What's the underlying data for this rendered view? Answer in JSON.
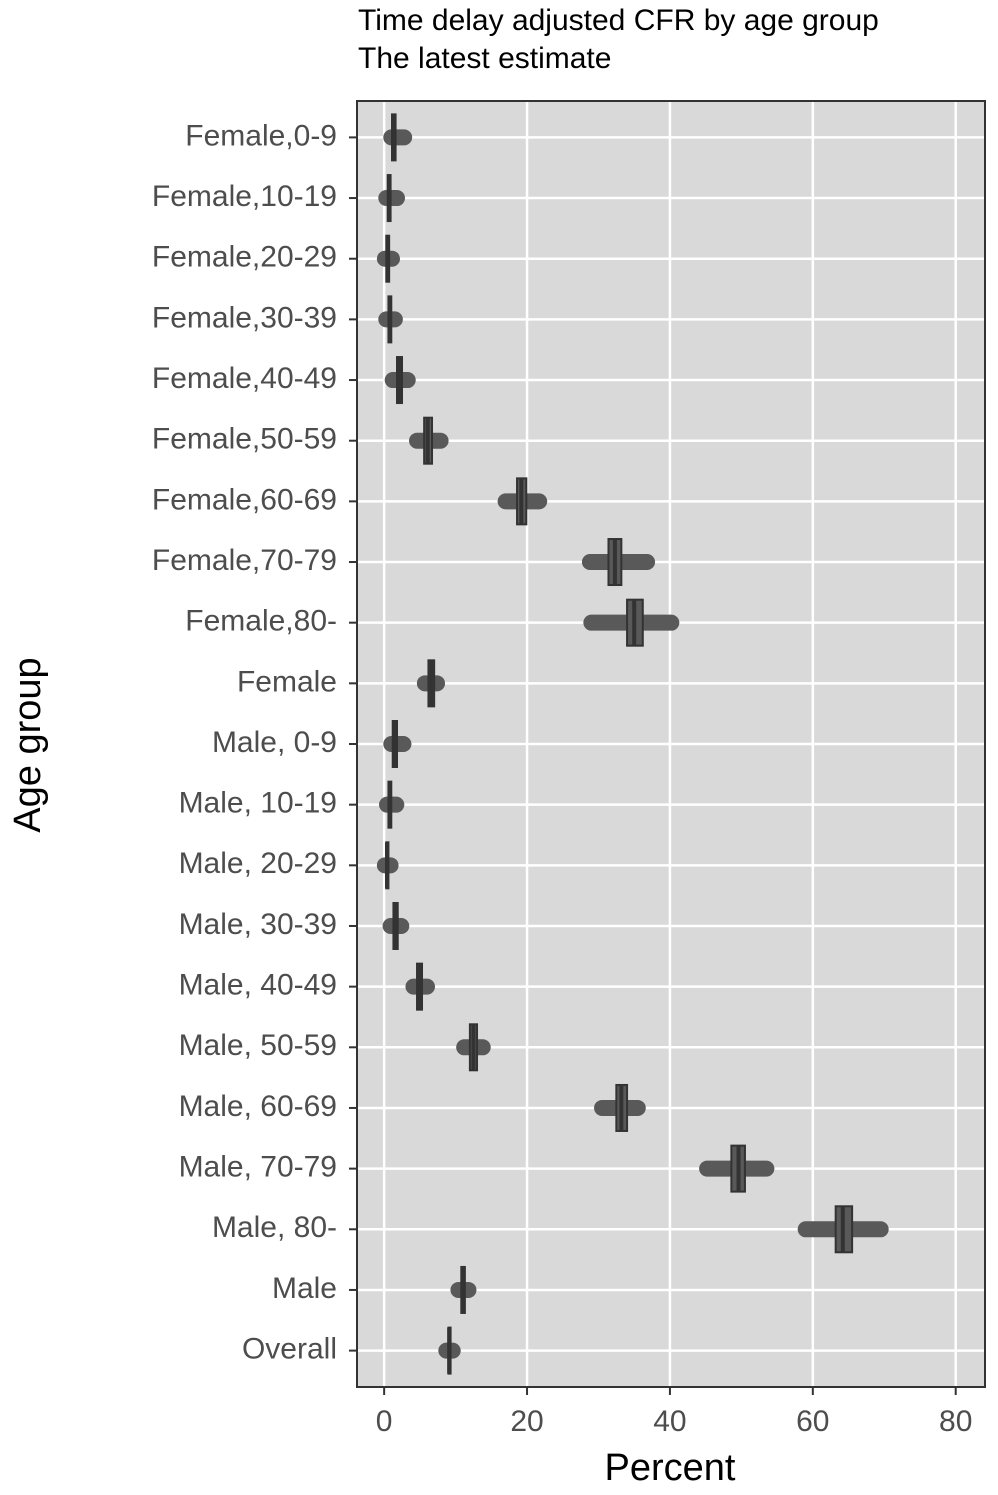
{
  "chart_data": {
    "type": "boxplot",
    "orientation": "horizontal",
    "title": "Time delay adjusted CFR by age group",
    "subtitle": "The latest estimate",
    "x_label": "Percent",
    "y_label": "Age group",
    "categories": [
      "Female,0-9",
      "Female,10-19",
      "Female,20-29",
      "Female,30-39",
      "Female,40-49",
      "Female,50-59",
      "Female,60-69",
      "Female,70-79",
      "Female,80-",
      "Female",
      "Male, 0-9",
      "Male, 10-19",
      "Male, 20-29",
      "Male, 30-39",
      "Male, 40-49",
      "Male, 50-59",
      "Male, 60-69",
      "Male, 70-79",
      "Male, 80-",
      "Male",
      "Overall"
    ],
    "boxes": [
      {
        "min": 1.0,
        "q1": 1.1,
        "median": 1.3,
        "q3": 1.6,
        "max": 2.8
      },
      {
        "min": 0.3,
        "q1": 0.5,
        "median": 0.7,
        "q3": 0.9,
        "max": 1.8
      },
      {
        "min": 0.1,
        "q1": 0.3,
        "median": 0.5,
        "q3": 0.7,
        "max": 1.1
      },
      {
        "min": 0.3,
        "q1": 0.6,
        "median": 0.8,
        "q3": 1.0,
        "max": 1.5
      },
      {
        "min": 1.2,
        "q1": 1.8,
        "median": 2.2,
        "q3": 2.5,
        "max": 3.3
      },
      {
        "min": 4.6,
        "q1": 5.6,
        "median": 6.1,
        "q3": 6.7,
        "max": 7.9
      },
      {
        "min": 17.0,
        "q1": 18.6,
        "median": 19.2,
        "q3": 19.9,
        "max": 21.7
      },
      {
        "min": 28.8,
        "q1": 31.4,
        "median": 32.3,
        "q3": 33.2,
        "max": 36.8
      },
      {
        "min": 29.0,
        "q1": 34.0,
        "median": 35.0,
        "q3": 36.2,
        "max": 40.2
      },
      {
        "min": 5.7,
        "q1": 6.2,
        "median": 6.6,
        "q3": 7.0,
        "max": 7.4
      },
      {
        "min": 1.0,
        "q1": 1.2,
        "median": 1.4,
        "q3": 1.8,
        "max": 2.7
      },
      {
        "min": 0.4,
        "q1": 0.6,
        "median": 0.8,
        "q3": 1.0,
        "max": 1.7
      },
      {
        "min": 0.1,
        "q1": 0.3,
        "median": 0.4,
        "q3": 0.6,
        "max": 0.9
      },
      {
        "min": 0.9,
        "q1": 1.3,
        "median": 1.6,
        "q3": 1.9,
        "max": 2.4
      },
      {
        "min": 4.1,
        "q1": 4.6,
        "median": 4.9,
        "q3": 5.3,
        "max": 6.0
      },
      {
        "min": 11.2,
        "q1": 12.0,
        "median": 12.5,
        "q3": 13.0,
        "max": 13.8
      },
      {
        "min": 30.5,
        "q1": 32.5,
        "median": 33.2,
        "q3": 34.0,
        "max": 35.5
      },
      {
        "min": 45.2,
        "q1": 48.6,
        "median": 49.6,
        "q3": 50.5,
        "max": 53.5
      },
      {
        "min": 59.0,
        "q1": 63.2,
        "median": 64.2,
        "q3": 65.5,
        "max": 69.5
      },
      {
        "min": 10.4,
        "q1": 10.8,
        "median": 11.0,
        "q3": 11.3,
        "max": 11.8
      },
      {
        "min": 8.7,
        "q1": 9.0,
        "median": 9.1,
        "q3": 9.3,
        "max": 9.6
      }
    ],
    "color": "#595959",
    "xlim": [
      -3.8,
      84.1
    ],
    "xticks": [
      0,
      20,
      40,
      60,
      80
    ],
    "grid": true
  }
}
